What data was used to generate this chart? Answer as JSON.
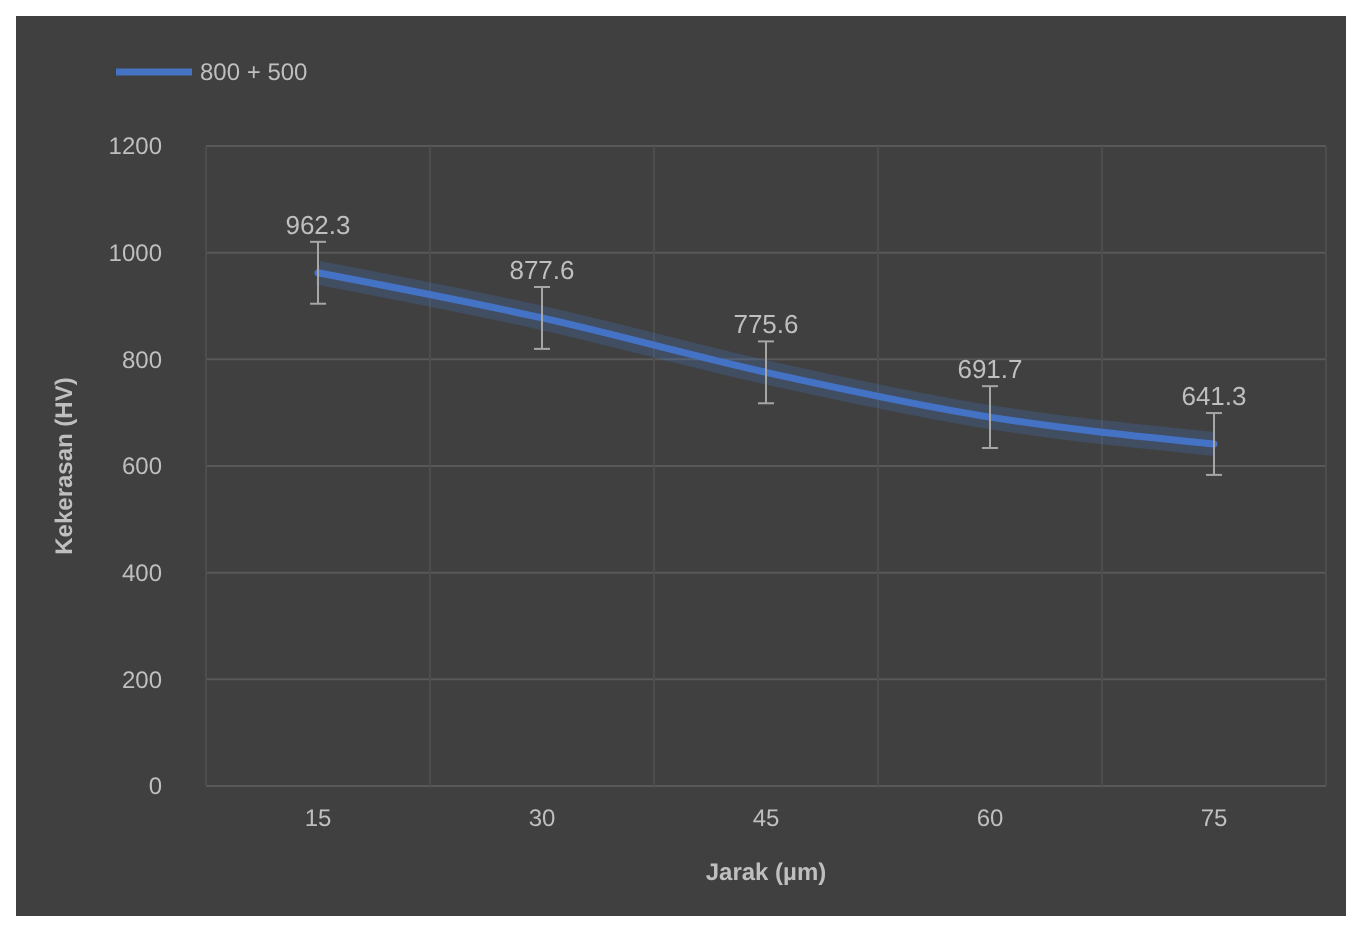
{
  "chart_data": {
    "type": "line",
    "xlabel": "Jarak (µm)",
    "ylabel": "Kekerasan (HV)",
    "categories": [
      "15",
      "30",
      "45",
      "60",
      "75"
    ],
    "series": [
      {
        "name": "800 + 500",
        "color": "#4472c4",
        "values": [
          962.3,
          877.6,
          775.6,
          691.7,
          641.3
        ],
        "errors": [
          58,
          58,
          58,
          58,
          58
        ]
      }
    ],
    "ylim": [
      0,
      1200
    ],
    "yticks": [
      0,
      200,
      400,
      600,
      800,
      1000,
      1200
    ],
    "grid": true,
    "legend": "top left",
    "data_labels": true,
    "marker": "none"
  }
}
